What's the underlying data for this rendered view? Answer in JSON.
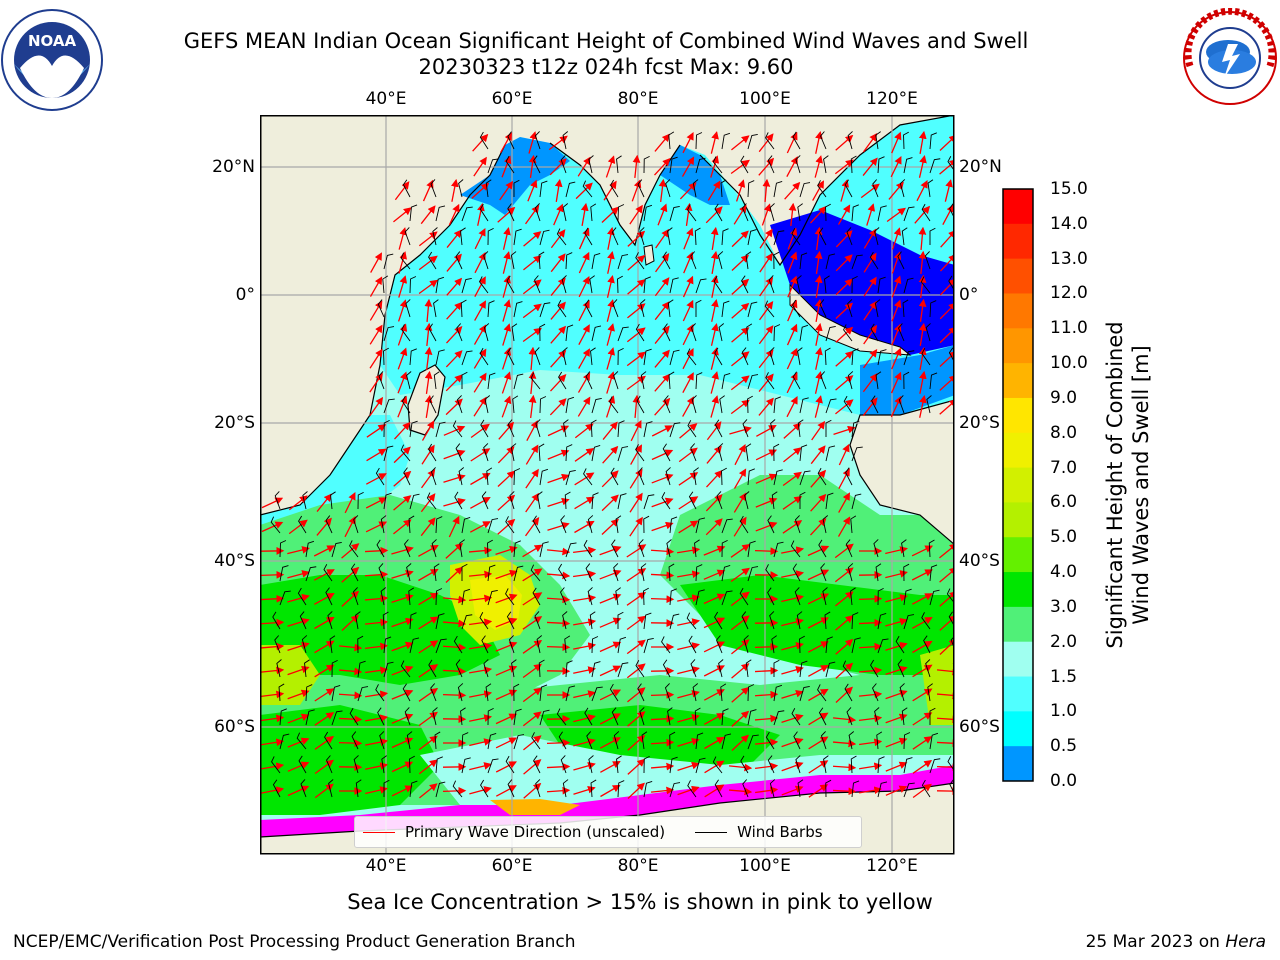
{
  "header": {
    "title_line1": "GEFS MEAN Indian Ocean Significant Height of Combined Wind Waves and Swell",
    "title_line2": "20230323 t12z 024h fcst    Max: 9.60"
  },
  "logos": {
    "left": "noaa-logo",
    "right": "nws-logo"
  },
  "map": {
    "lon_ticks_top": [
      "40°E",
      "60°E",
      "80°E",
      "100°E",
      "120°E"
    ],
    "lon_ticks_bottom": [
      "40°E",
      "60°E",
      "80°E",
      "100°E",
      "120°E"
    ],
    "lat_ticks_left": [
      "20°N",
      "0°",
      "20°S",
      "40°S",
      "60°S"
    ],
    "lat_ticks_right": [
      "20°N",
      "0°",
      "20°S",
      "40°S",
      "60°S"
    ],
    "legend": {
      "primary_wave_label": "Primary Wave Direction (unscaled)",
      "wind_barbs_label": "Wind Barbs",
      "primary_wave_color": "#ff0000",
      "wind_barbs_color": "#000000"
    },
    "land_color": "#efeedc",
    "grid": true
  },
  "colorbar": {
    "labels": [
      "15.0",
      "14.0",
      "13.0",
      "12.0",
      "11.0",
      "10.0",
      "9.0",
      "8.0",
      "7.0",
      "6.0",
      "5.0",
      "4.0",
      "3.0",
      "2.0",
      "1.5",
      "1.0",
      "0.5",
      "0.0"
    ],
    "colors": [
      "#ff0000",
      "#ff2800",
      "#ff5000",
      "#ff7800",
      "#ff9600",
      "#ffb400",
      "#ffe600",
      "#f0f000",
      "#d2f000",
      "#b4f000",
      "#64f000",
      "#00e600",
      "#50f078",
      "#a0fff0",
      "#50ffff",
      "#00ffff",
      "#0096ff",
      "#0000ff"
    ],
    "title_line1": "Significant Height of Combined",
    "title_line2": "Wind Waves and Swell [m]"
  },
  "notes": {
    "ice": "Sea Ice Concentration > 15% is shown in pink to yellow"
  },
  "footer": {
    "left": "NCEP/EMC/Verification Post Processing Product Generation Branch",
    "date": "25 Mar 2023 on",
    "host": "Hera"
  }
}
